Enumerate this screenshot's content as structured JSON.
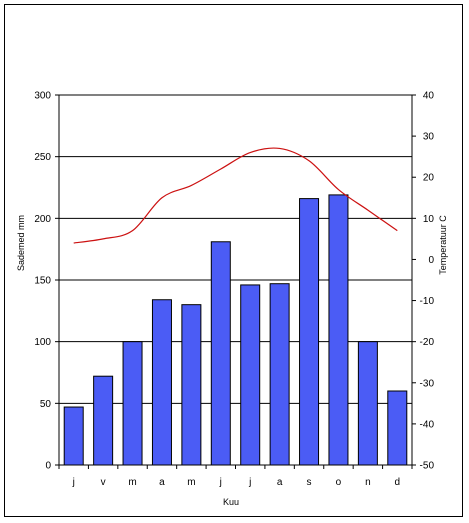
{
  "chart_data": {
    "type": "bar",
    "categories": [
      "j",
      "v",
      "m",
      "a",
      "m",
      "j",
      "j",
      "a",
      "s",
      "o",
      "n",
      "d"
    ],
    "series": [
      {
        "values": [
          47,
          72,
          100,
          134,
          130,
          181,
          146,
          147,
          216,
          219,
          100,
          60
        ],
        "axis": "left",
        "type": "bar"
      },
      {
        "values": [
          4,
          5,
          7,
          15,
          18,
          22,
          26,
          27,
          24,
          17,
          12,
          7
        ],
        "axis": "right",
        "type": "line"
      }
    ],
    "xlabel": "Kuu",
    "ylabel": "Sademed mm",
    "y2label": "Temperatuur C",
    "ylim": [
      0,
      300
    ],
    "y2lim": [
      -50,
      40
    ],
    "yticks": [
      "0",
      "50",
      "100",
      "150",
      "200",
      "250",
      "300"
    ],
    "y2ticks": [
      "-50",
      "-40",
      "-30",
      "-20",
      "-10",
      "0",
      "10",
      "20",
      "30",
      "40"
    ],
    "grid": true,
    "colors": {
      "bars": "#4b5cf5",
      "line": "#cc1111",
      "grid": "#000000"
    }
  }
}
